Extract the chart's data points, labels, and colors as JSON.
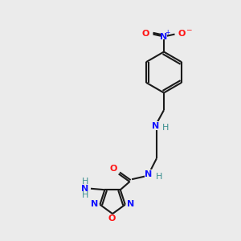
{
  "bg_color": "#ebebeb",
  "bond_color": "#1a1a1a",
  "N_color": "#1414ff",
  "O_color": "#ff1414",
  "H_color": "#3a8f8f",
  "figsize": [
    3.0,
    3.0
  ],
  "dpi": 100,
  "xlim": [
    0,
    10
  ],
  "ylim": [
    0,
    10
  ]
}
